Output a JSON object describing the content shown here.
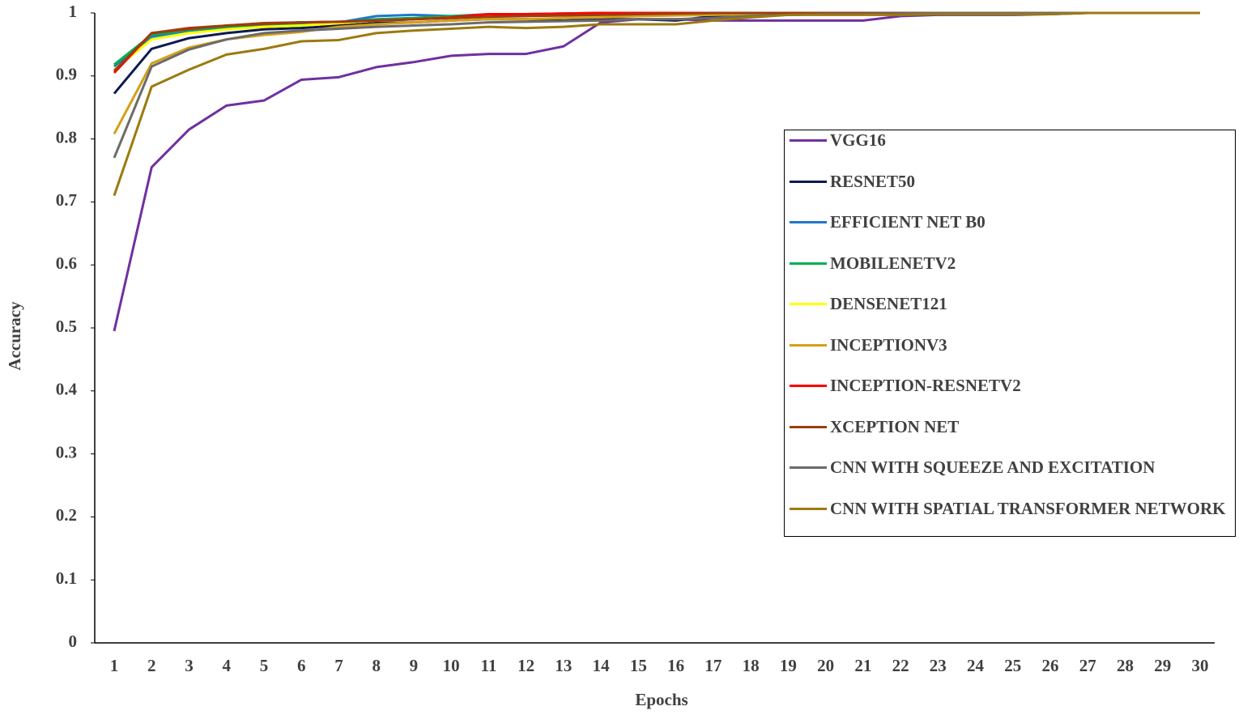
{
  "chart_data": {
    "type": "line",
    "x_label": "Epochs",
    "y_label": "Accuracy",
    "categories": [
      "1",
      "2",
      "3",
      "4",
      "5",
      "6",
      "7",
      "8",
      "9",
      "10",
      "11",
      "12",
      "13",
      "14",
      "15",
      "16",
      "17",
      "18",
      "19",
      "20",
      "21",
      "22",
      "23",
      "24",
      "25",
      "26",
      "27",
      "28",
      "29",
      "30"
    ],
    "ylim": [
      0,
      1
    ],
    "yticks": [
      0,
      0.1,
      0.2,
      0.3,
      0.4,
      0.5,
      0.6,
      0.7,
      0.8,
      0.9,
      1
    ],
    "series": [
      {
        "name": "VGG16",
        "color": "#7030a0",
        "values": [
          0.495,
          0.755,
          0.815,
          0.853,
          0.861,
          0.894,
          0.898,
          0.914,
          0.922,
          0.932,
          0.935,
          0.935,
          0.947,
          0.985,
          0.99,
          0.99,
          0.988,
          0.988,
          0.988,
          0.988,
          0.988,
          0.995,
          0.997,
          0.997,
          0.997,
          0.998,
          1,
          1,
          1,
          1
        ]
      },
      {
        "name": "RESNET50",
        "color": "#0d1a4f",
        "values": [
          0.872,
          0.943,
          0.96,
          0.968,
          0.974,
          0.976,
          0.98,
          0.984,
          0.985,
          0.988,
          0.99,
          0.99,
          0.988,
          0.99,
          0.99,
          0.988,
          0.995,
          0.997,
          0.997,
          0.998,
          0.998,
          0.999,
          1,
          1,
          1,
          1,
          1,
          1,
          1,
          1
        ]
      },
      {
        "name": "EFFICIENT NET B0",
        "color": "#1f78c8",
        "values": [
          0.915,
          0.962,
          0.972,
          0.976,
          0.978,
          0.98,
          0.985,
          0.995,
          0.997,
          0.995,
          0.998,
          0.998,
          0.999,
          1,
          1,
          1,
          1,
          1,
          1,
          1,
          1,
          1,
          1,
          1,
          1,
          1,
          1,
          1,
          1,
          1
        ]
      },
      {
        "name": "MOBILENETV2",
        "color": "#00b050",
        "values": [
          0.918,
          0.965,
          0.973,
          0.978,
          0.98,
          0.982,
          0.985,
          0.99,
          0.992,
          0.995,
          0.997,
          0.998,
          0.999,
          1,
          1,
          1,
          1,
          1,
          1,
          1,
          1,
          1,
          1,
          1,
          1,
          1,
          1,
          1,
          1,
          1
        ]
      },
      {
        "name": "DENSENET121",
        "color": "#ffff00",
        "values": [
          0.91,
          0.958,
          0.968,
          0.974,
          0.978,
          0.98,
          0.984,
          0.988,
          0.99,
          0.993,
          0.995,
          0.996,
          0.997,
          0.998,
          0.999,
          1,
          1,
          1,
          1,
          1,
          1,
          1,
          1,
          1,
          1,
          1,
          1,
          1,
          1,
          1
        ]
      },
      {
        "name": "INCEPTIONV3",
        "color": "#d4a017",
        "values": [
          0.808,
          0.92,
          0.945,
          0.958,
          0.965,
          0.97,
          0.978,
          0.982,
          0.985,
          0.988,
          0.99,
          0.99,
          0.992,
          0.993,
          0.995,
          0.996,
          0.997,
          0.998,
          0.999,
          1,
          1,
          1,
          1,
          1,
          1,
          1,
          1,
          1,
          1,
          1
        ]
      },
      {
        "name": "INCEPTION-RESNETV2",
        "color": "#ff0000",
        "values": [
          0.905,
          0.968,
          0.975,
          0.98,
          0.983,
          0.985,
          0.986,
          0.988,
          0.99,
          0.993,
          0.998,
          0.998,
          0.999,
          1,
          1,
          1,
          1,
          1,
          1,
          1,
          1,
          1,
          1,
          1,
          1,
          1,
          1,
          1,
          1,
          1
        ]
      },
      {
        "name": "XCEPTION NET",
        "color": "#9c3d10",
        "values": [
          0.908,
          0.968,
          0.976,
          0.98,
          0.984,
          0.985,
          0.986,
          0.988,
          0.99,
          0.992,
          0.994,
          0.995,
          0.996,
          0.997,
          0.998,
          0.999,
          1,
          1,
          1,
          1,
          1,
          1,
          1,
          1,
          1,
          1,
          1,
          1,
          1,
          1
        ]
      },
      {
        "name": "CNN WITH SQUEEZE AND EXCITATION",
        "color": "#6b6b6b",
        "values": [
          0.77,
          0.915,
          0.942,
          0.958,
          0.968,
          0.972,
          0.975,
          0.978,
          0.98,
          0.982,
          0.985,
          0.986,
          0.987,
          0.988,
          0.99,
          0.99,
          0.992,
          0.995,
          0.997,
          0.998,
          0.998,
          0.999,
          1,
          1,
          1,
          1,
          1,
          1,
          1,
          1
        ]
      },
      {
        "name": "CNN WITH SPATIAL TRANSFORMER NETWORK",
        "color": "#9b7a0f",
        "values": [
          0.71,
          0.883,
          0.91,
          0.934,
          0.943,
          0.955,
          0.957,
          0.968,
          0.972,
          0.975,
          0.978,
          0.976,
          0.978,
          0.982,
          0.982,
          0.982,
          0.988,
          0.993,
          0.997,
          0.997,
          0.997,
          0.997,
          0.998,
          0.998,
          0.998,
          0.998,
          1,
          1,
          1,
          1
        ]
      }
    ]
  }
}
